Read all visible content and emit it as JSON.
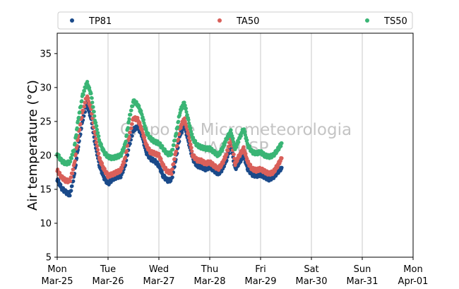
{
  "chart_data": {
    "type": "scatter",
    "title": "",
    "xlabel": "",
    "ylabel": "Air temperature (°C)",
    "ylim": [
      5,
      38
    ],
    "yticks": [
      5,
      10,
      15,
      20,
      25,
      30,
      35
    ],
    "x_unit": "days",
    "xlim": [
      "2024-03-25",
      "2024-04-01"
    ],
    "xticks": [
      {
        "day": "Mon",
        "date": "Mar-25"
      },
      {
        "day": "Tue",
        "date": "Mar-26"
      },
      {
        "day": "Wed",
        "date": "Mar-27"
      },
      {
        "day": "Thu",
        "date": "Mar-28"
      },
      {
        "day": "Fri",
        "date": "Mar-29"
      },
      {
        "day": "Sat",
        "date": "Mar-30"
      },
      {
        "day": "Sun",
        "date": "Mar-31"
      },
      {
        "day": "Mon",
        "date": "Apr-01"
      }
    ],
    "grid": "vertical",
    "legend_position": "top",
    "watermark": [
      "Grupo de Micrometeorologia",
      "IAG/USP"
    ],
    "series": [
      {
        "name": "TP81",
        "color": "#1a4a8a",
        "points": [
          [
            "2024-03-25 00:00",
            16.5
          ],
          [
            "2024-03-25 02:00",
            15.2
          ],
          [
            "2024-03-25 04:00",
            14.6
          ],
          [
            "2024-03-25 06:00",
            14.2
          ],
          [
            "2024-03-25 08:00",
            17.0
          ],
          [
            "2024-03-25 10:00",
            21.5
          ],
          [
            "2024-03-25 12:00",
            25.2
          ],
          [
            "2024-03-25 14:00",
            27.6
          ],
          [
            "2024-03-25 16:00",
            25.5
          ],
          [
            "2024-03-25 18:00",
            21.5
          ],
          [
            "2024-03-25 20:00",
            18.5
          ],
          [
            "2024-03-25 22:00",
            16.8
          ],
          [
            "2024-03-26 00:00",
            15.8
          ],
          [
            "2024-03-26 02:00",
            16.5
          ],
          [
            "2024-03-26 04:00",
            16.8
          ],
          [
            "2024-03-26 06:00",
            17.0
          ],
          [
            "2024-03-26 08:00",
            18.5
          ],
          [
            "2024-03-26 10:00",
            21.5
          ],
          [
            "2024-03-26 12:00",
            23.8
          ],
          [
            "2024-03-26 14:00",
            24.2
          ],
          [
            "2024-03-26 16:00",
            23.0
          ],
          [
            "2024-03-26 18:00",
            20.5
          ],
          [
            "2024-03-26 20:00",
            19.5
          ],
          [
            "2024-03-26 22:00",
            19.2
          ],
          [
            "2024-03-27 00:00",
            18.5
          ],
          [
            "2024-03-27 02:00",
            17.0
          ],
          [
            "2024-03-27 04:00",
            16.3
          ],
          [
            "2024-03-27 06:00",
            16.4
          ],
          [
            "2024-03-27 08:00",
            19.5
          ],
          [
            "2024-03-27 10:00",
            23.0
          ],
          [
            "2024-03-27 12:00",
            24.5
          ],
          [
            "2024-03-27 14:00",
            22.0
          ],
          [
            "2024-03-27 16:00",
            19.5
          ],
          [
            "2024-03-27 18:00",
            18.5
          ],
          [
            "2024-03-27 20:00",
            18.3
          ],
          [
            "2024-03-27 22:00",
            18.0
          ],
          [
            "2024-03-28 00:00",
            18.3
          ],
          [
            "2024-03-28 02:00",
            17.8
          ],
          [
            "2024-03-28 04:00",
            17.3
          ],
          [
            "2024-03-28 06:00",
            18.0
          ],
          [
            "2024-03-28 08:00",
            19.5
          ],
          [
            "2024-03-28 10:00",
            21.5
          ],
          [
            "2024-03-28 12:00",
            18.0
          ],
          [
            "2024-03-28 14:00",
            19.0
          ],
          [
            "2024-03-28 16:00",
            20.0
          ],
          [
            "2024-03-28 18:00",
            18.0
          ],
          [
            "2024-03-28 20:00",
            17.2
          ],
          [
            "2024-03-28 22:00",
            17.0
          ],
          [
            "2024-03-29 00:00",
            17.2
          ],
          [
            "2024-03-29 02:00",
            16.8
          ],
          [
            "2024-03-29 04:00",
            16.5
          ],
          [
            "2024-03-29 06:00",
            16.8
          ],
          [
            "2024-03-29 08:00",
            17.5
          ],
          [
            "2024-03-29 10:00",
            18.2
          ]
        ]
      },
      {
        "name": "TA50",
        "color": "#d9605a",
        "points": [
          [
            "2024-03-25 00:00",
            17.8
          ],
          [
            "2024-03-25 02:00",
            16.8
          ],
          [
            "2024-03-25 04:00",
            16.3
          ],
          [
            "2024-03-25 06:00",
            16.2
          ],
          [
            "2024-03-25 08:00",
            18.5
          ],
          [
            "2024-03-25 10:00",
            23.0
          ],
          [
            "2024-03-25 12:00",
            26.5
          ],
          [
            "2024-03-25 14:00",
            28.8
          ],
          [
            "2024-03-25 16:00",
            26.8
          ],
          [
            "2024-03-25 18:00",
            22.8
          ],
          [
            "2024-03-25 20:00",
            19.5
          ],
          [
            "2024-03-25 22:00",
            18.0
          ],
          [
            "2024-03-26 00:00",
            17.0
          ],
          [
            "2024-03-26 02:00",
            17.2
          ],
          [
            "2024-03-26 04:00",
            17.5
          ],
          [
            "2024-03-26 06:00",
            17.8
          ],
          [
            "2024-03-26 08:00",
            19.5
          ],
          [
            "2024-03-26 10:00",
            23.0
          ],
          [
            "2024-03-26 12:00",
            25.5
          ],
          [
            "2024-03-26 14:00",
            25.3
          ],
          [
            "2024-03-26 16:00",
            23.8
          ],
          [
            "2024-03-26 18:00",
            21.5
          ],
          [
            "2024-03-26 20:00",
            20.5
          ],
          [
            "2024-03-26 22:00",
            20.3
          ],
          [
            "2024-03-27 00:00",
            20.0
          ],
          [
            "2024-03-27 02:00",
            18.5
          ],
          [
            "2024-03-27 04:00",
            17.6
          ],
          [
            "2024-03-27 06:00",
            17.5
          ],
          [
            "2024-03-27 08:00",
            20.5
          ],
          [
            "2024-03-27 10:00",
            24.0
          ],
          [
            "2024-03-27 12:00",
            25.5
          ],
          [
            "2024-03-27 14:00",
            23.0
          ],
          [
            "2024-03-27 16:00",
            20.0
          ],
          [
            "2024-03-27 18:00",
            19.3
          ],
          [
            "2024-03-27 20:00",
            19.2
          ],
          [
            "2024-03-27 22:00",
            18.8
          ],
          [
            "2024-03-28 00:00",
            19.0
          ],
          [
            "2024-03-28 02:00",
            18.5
          ],
          [
            "2024-03-28 04:00",
            18.0
          ],
          [
            "2024-03-28 06:00",
            18.8
          ],
          [
            "2024-03-28 08:00",
            20.3
          ],
          [
            "2024-03-28 10:00",
            22.5
          ],
          [
            "2024-03-28 12:00",
            18.8
          ],
          [
            "2024-03-28 14:00",
            20.0
          ],
          [
            "2024-03-28 16:00",
            21.0
          ],
          [
            "2024-03-28 18:00",
            19.0
          ],
          [
            "2024-03-28 20:00",
            18.0
          ],
          [
            "2024-03-28 22:00",
            17.8
          ],
          [
            "2024-03-29 00:00",
            18.0
          ],
          [
            "2024-03-29 02:00",
            17.6
          ],
          [
            "2024-03-29 04:00",
            17.3
          ],
          [
            "2024-03-29 06:00",
            17.5
          ],
          [
            "2024-03-29 08:00",
            18.5
          ],
          [
            "2024-03-29 10:00",
            19.6
          ]
        ]
      },
      {
        "name": "TS50",
        "color": "#3ab575",
        "points": [
          [
            "2024-03-25 00:00",
            20.2
          ],
          [
            "2024-03-25 02:00",
            19.2
          ],
          [
            "2024-03-25 04:00",
            18.8
          ],
          [
            "2024-03-25 06:00",
            19.0
          ],
          [
            "2024-03-25 08:00",
            21.0
          ],
          [
            "2024-03-25 10:00",
            25.5
          ],
          [
            "2024-03-25 12:00",
            28.8
          ],
          [
            "2024-03-25 14:00",
            30.8
          ],
          [
            "2024-03-25 16:00",
            29.0
          ],
          [
            "2024-03-25 18:00",
            25.0
          ],
          [
            "2024-03-25 20:00",
            22.0
          ],
          [
            "2024-03-25 22:00",
            20.5
          ],
          [
            "2024-03-26 00:00",
            19.8
          ],
          [
            "2024-03-26 02:00",
            19.6
          ],
          [
            "2024-03-26 04:00",
            19.8
          ],
          [
            "2024-03-26 06:00",
            20.0
          ],
          [
            "2024-03-26 08:00",
            21.5
          ],
          [
            "2024-03-26 10:00",
            25.5
          ],
          [
            "2024-03-26 12:00",
            28.0
          ],
          [
            "2024-03-26 14:00",
            27.5
          ],
          [
            "2024-03-26 16:00",
            26.0
          ],
          [
            "2024-03-26 18:00",
            23.5
          ],
          [
            "2024-03-26 20:00",
            22.5
          ],
          [
            "2024-03-26 22:00",
            22.0
          ],
          [
            "2024-03-27 00:00",
            21.8
          ],
          [
            "2024-03-27 02:00",
            21.0
          ],
          [
            "2024-03-27 04:00",
            20.2
          ],
          [
            "2024-03-27 06:00",
            20.3
          ],
          [
            "2024-03-27 08:00",
            23.0
          ],
          [
            "2024-03-27 10:00",
            26.5
          ],
          [
            "2024-03-27 12:00",
            27.8
          ],
          [
            "2024-03-27 14:00",
            25.0
          ],
          [
            "2024-03-27 16:00",
            22.5
          ],
          [
            "2024-03-27 18:00",
            21.5
          ],
          [
            "2024-03-27 20:00",
            21.2
          ],
          [
            "2024-03-27 22:00",
            21.0
          ],
          [
            "2024-03-28 00:00",
            21.0
          ],
          [
            "2024-03-28 02:00",
            20.5
          ],
          [
            "2024-03-28 04:00",
            20.0
          ],
          [
            "2024-03-28 06:00",
            21.0
          ],
          [
            "2024-03-28 08:00",
            22.5
          ],
          [
            "2024-03-28 10:00",
            23.5
          ],
          [
            "2024-03-28 12:00",
            21.0
          ],
          [
            "2024-03-28 14:00",
            22.5
          ],
          [
            "2024-03-28 16:00",
            24.0
          ],
          [
            "2024-03-28 18:00",
            21.5
          ],
          [
            "2024-03-28 20:00",
            20.5
          ],
          [
            "2024-03-28 22:00",
            20.3
          ],
          [
            "2024-03-29 00:00",
            20.5
          ],
          [
            "2024-03-29 02:00",
            20.0
          ],
          [
            "2024-03-29 04:00",
            19.8
          ],
          [
            "2024-03-29 06:00",
            20.0
          ],
          [
            "2024-03-29 08:00",
            20.8
          ],
          [
            "2024-03-29 10:00",
            21.8
          ]
        ]
      }
    ]
  }
}
